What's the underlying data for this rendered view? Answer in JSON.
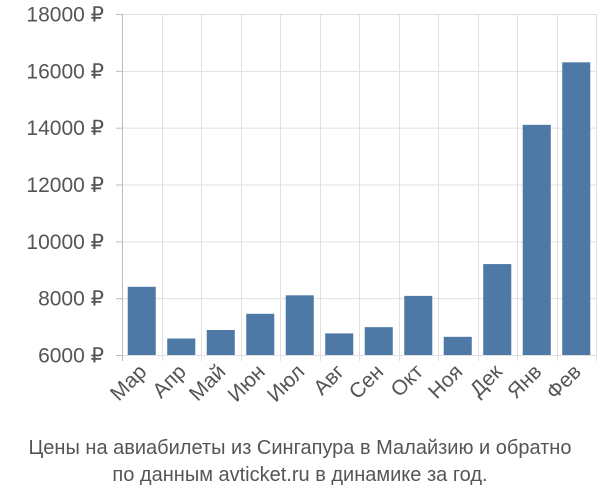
{
  "chart_data": {
    "type": "bar",
    "categories": [
      "Мар",
      "Апр",
      "Май",
      "Июн",
      "Июл",
      "Авг",
      "Сен",
      "Окт",
      "Ноя",
      "Дек",
      "Янв",
      "Фев"
    ],
    "values": [
      8400,
      6580,
      6880,
      7450,
      8100,
      6760,
      6980,
      8080,
      6640,
      9200,
      14100,
      16300
    ],
    "ylim": [
      6000,
      18000
    ],
    "yticks": [
      6000,
      8000,
      10000,
      12000,
      14000,
      16000,
      18000
    ],
    "ytick_labels": [
      "6000 ₽",
      "8000 ₽",
      "10000 ₽",
      "12000 ₽",
      "14000 ₽",
      "16000 ₽",
      "18000 ₽"
    ],
    "bar_color": "#4e79a7",
    "grid": true,
    "xlabel": "",
    "ylabel": ""
  },
  "caption": {
    "line1": "Цены на авиабилеты из Сингапура в Малайзию и обратно",
    "line2": "по данным avticket.ru в динамике за год."
  }
}
